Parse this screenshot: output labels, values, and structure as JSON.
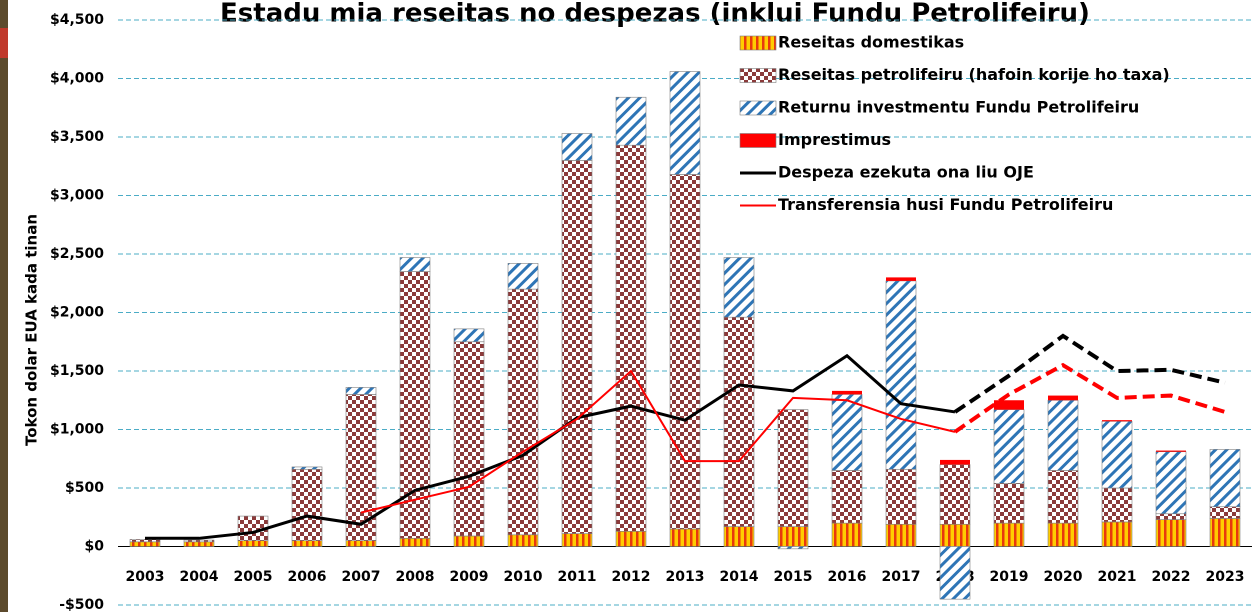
{
  "chart_data": {
    "type": "bar",
    "title": "Estadu mia reseitas no despezas (inklui Fundu Petrolifeiru)",
    "y_label": "Tokon dolar EUA kada tinan",
    "categories": [
      "2003",
      "2004",
      "2005",
      "2006",
      "2007",
      "2008",
      "2009",
      "2010",
      "2011",
      "2012",
      "2013",
      "2014",
      "2015",
      "2016",
      "2017",
      "2018",
      "2019",
      "2020",
      "2021",
      "2022",
      "2023"
    ],
    "ylim": [
      -500,
      4500
    ],
    "yticks": [
      {
        "value": -500,
        "label": "-$500"
      },
      {
        "value": 0,
        "label": "$0"
      },
      {
        "value": 500,
        "label": "$500"
      },
      {
        "value": 1000,
        "label": "$1,000"
      },
      {
        "value": 1500,
        "label": "$1,500"
      },
      {
        "value": 2000,
        "label": "$2,000"
      },
      {
        "value": 2500,
        "label": "$2,500"
      },
      {
        "value": 3000,
        "label": "$3,000"
      },
      {
        "value": 3500,
        "label": "$3,500"
      },
      {
        "value": 4000,
        "label": "$4,000"
      },
      {
        "value": 4500,
        "label": "$4,500"
      }
    ],
    "grid": true,
    "legend": "top-right",
    "series": [
      {
        "name": "Reseitas domestikas",
        "color": "#ffcc00",
        "pattern": "stripes",
        "values": [
          40,
          40,
          50,
          50,
          50,
          70,
          90,
          100,
          110,
          130,
          150,
          170,
          170,
          200,
          190,
          190,
          200,
          200,
          210,
          230,
          240
        ]
      },
      {
        "name": "Reseitas petrolifeiru (hafoin korije ho taxa)",
        "color": "#8b3a3a",
        "pattern": "checker",
        "values": [
          20,
          15,
          210,
          610,
          1250,
          2280,
          1660,
          2100,
          3190,
          3300,
          3030,
          1790,
          1000,
          450,
          470,
          510,
          340,
          450,
          290,
          50,
          100
        ]
      },
      {
        "name": "Returnu investmentu Fundu Petrolifeiru",
        "color": "#2e75b6",
        "pattern": "hatch",
        "values": [
          0,
          0,
          0,
          20,
          60,
          120,
          110,
          220,
          230,
          410,
          880,
          510,
          -20,
          650,
          1610,
          -450,
          630,
          600,
          570,
          530,
          490
        ]
      },
      {
        "name": "Imprestimus",
        "color": "#ff0000",
        "pattern": "solid",
        "values": [
          0,
          0,
          0,
          0,
          0,
          0,
          0,
          0,
          0,
          0,
          0,
          0,
          0,
          30,
          30,
          40,
          80,
          40,
          10,
          10,
          0
        ]
      },
      {
        "name": "Despeza ezekuta ona liu OJE",
        "type": "line",
        "color": "#000000",
        "dash_from": "2018",
        "values": [
          70,
          70,
          120,
          260,
          190,
          480,
          600,
          780,
          1100,
          1200,
          1080,
          1380,
          1330,
          1630,
          1220,
          1150,
          1460,
          1800,
          1500,
          1510,
          1400
        ]
      },
      {
        "name": "Transferensia husi Fundu Petrolifeiru",
        "type": "line",
        "color": "#ff0000",
        "dash_from": "2018",
        "values": [
          null,
          null,
          null,
          null,
          290,
          400,
          510,
          810,
          1090,
          1500,
          730,
          730,
          1270,
          1250,
          1090,
          980,
          1300,
          1550,
          1270,
          1290,
          1150
        ]
      }
    ]
  }
}
